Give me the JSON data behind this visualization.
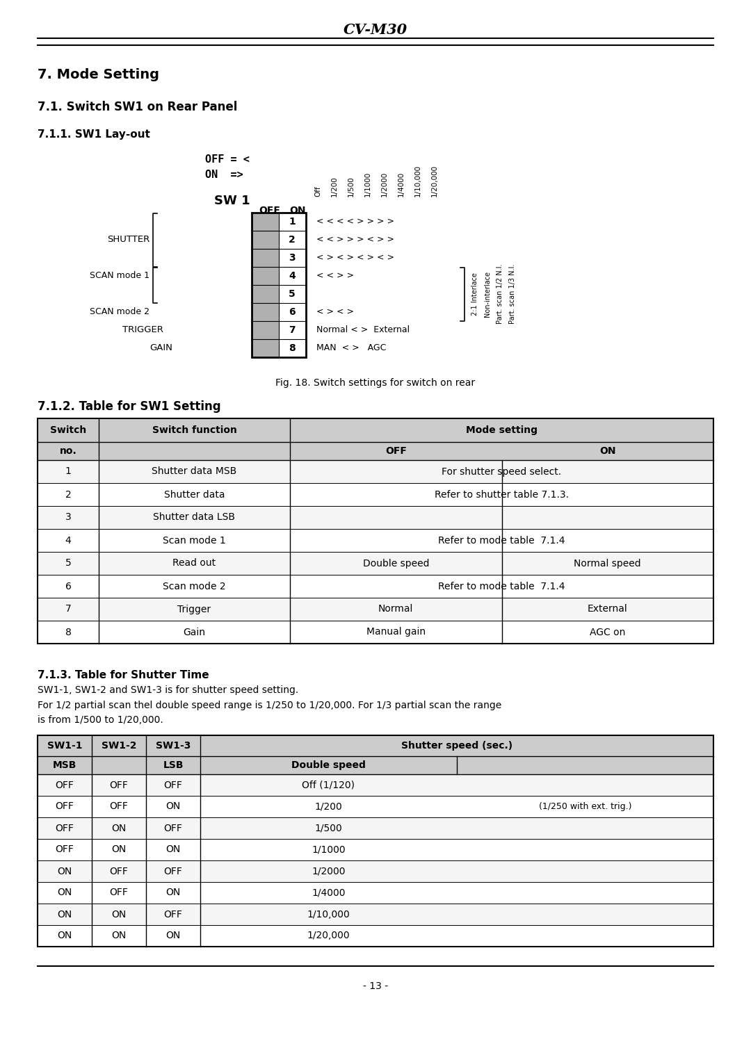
{
  "page_title": "CV-M30",
  "section_title": "7. Mode Setting",
  "sub_section": "7.1. Switch SW1 on Rear Panel",
  "sub_sub_section": "7.1.1. SW1 Lay-out",
  "legend_off": "OFF = <",
  "legend_on": "ON  =>",
  "sw1_label": "SW 1",
  "off_label": "OFF",
  "on_label": "ON",
  "column_headers": [
    "Off",
    "1/200",
    "1/500",
    "1/1000",
    "1/2000",
    "1/4000",
    "1/10,000",
    "1/20,000"
  ],
  "bracket_labels_right": [
    "2:1 Interlace",
    "Non-interlace",
    "Part. scan 1/2 N.I.",
    "Part. scan 1/3 N.I."
  ],
  "fig_caption": "Fig. 18. Switch settings for switch on rear",
  "table1_title": "7.1.2. Table for SW1 Setting",
  "table1_rows": [
    [
      "1",
      "Shutter data MSB",
      "For shutter speed select.",
      ""
    ],
    [
      "2",
      "Shutter data",
      "Refer to shutter table 7.1.3.",
      ""
    ],
    [
      "3",
      "Shutter data LSB",
      "",
      ""
    ],
    [
      "4",
      "Scan mode 1",
      "Refer to mode table  7.1.4",
      ""
    ],
    [
      "5",
      "Read out",
      "Double speed",
      "Normal speed"
    ],
    [
      "6",
      "Scan mode 2",
      "Refer to mode table  7.1.4",
      ""
    ],
    [
      "7",
      "Trigger",
      "Normal",
      "External"
    ],
    [
      "8",
      "Gain",
      "Manual gain",
      "AGC on"
    ]
  ],
  "table2_title": "7.1.3. Table for Shutter Time",
  "table2_desc1": "SW1-1, SW1-2 and SW1-3 is for shutter speed setting.",
  "table2_desc2": "For 1/2 partial scan thel double speed range is 1/250 to 1/20,000. For 1/3 partial scan the range",
  "table2_desc3": "is from 1/500 to 1/20,000.",
  "table2_rows": [
    [
      "OFF",
      "OFF",
      "OFF",
      "Off (1/120)",
      ""
    ],
    [
      "OFF",
      "OFF",
      "ON",
      "1/200",
      "(1/250 with ext. trig.)"
    ],
    [
      "OFF",
      "ON",
      "OFF",
      "1/500",
      ""
    ],
    [
      "OFF",
      "ON",
      "ON",
      "1/1000",
      ""
    ],
    [
      "ON",
      "OFF",
      "OFF",
      "1/2000",
      ""
    ],
    [
      "ON",
      "OFF",
      "ON",
      "1/4000",
      ""
    ],
    [
      "ON",
      "ON",
      "OFF",
      "1/10,000",
      ""
    ],
    [
      "ON",
      "ON",
      "ON",
      "1/20,000",
      ""
    ]
  ],
  "page_number": "- 13 -",
  "bg_color": "#ffffff",
  "header_bg": "#cccccc",
  "row_bg_even": "#f5f5f5",
  "row_bg_odd": "#ffffff",
  "switch_gray": "#b0b0b0"
}
